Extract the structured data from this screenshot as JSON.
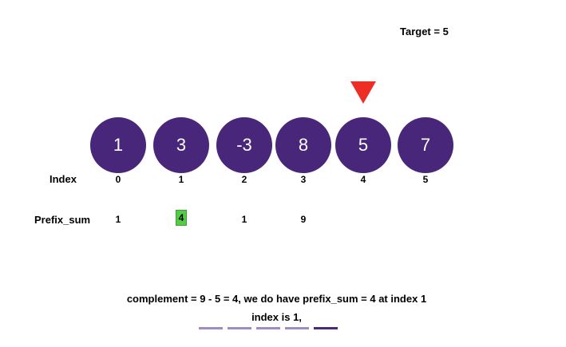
{
  "target_label": "Target = 5",
  "nodes": [
    "1",
    "3",
    "-3",
    "8",
    "5",
    "7"
  ],
  "index_label": "Index",
  "indices": [
    "0",
    "1",
    "2",
    "3",
    "4",
    "5"
  ],
  "prefix_label": "Prefix_sum",
  "prefix_values": [
    "1",
    "4",
    "1",
    "9"
  ],
  "caption_line1": "complement = 9 - 5 = 4, we do have prefix_sum = 4 at index 1",
  "caption_line2": "index is 1,",
  "colors": {
    "node": "#48267a",
    "pointer": "#ee2e24",
    "highlight": "#55cc46",
    "progress_inactive": "#a18bc4",
    "progress_active": "#4b2a7d"
  },
  "progress": {
    "total": 5,
    "active": 5
  }
}
